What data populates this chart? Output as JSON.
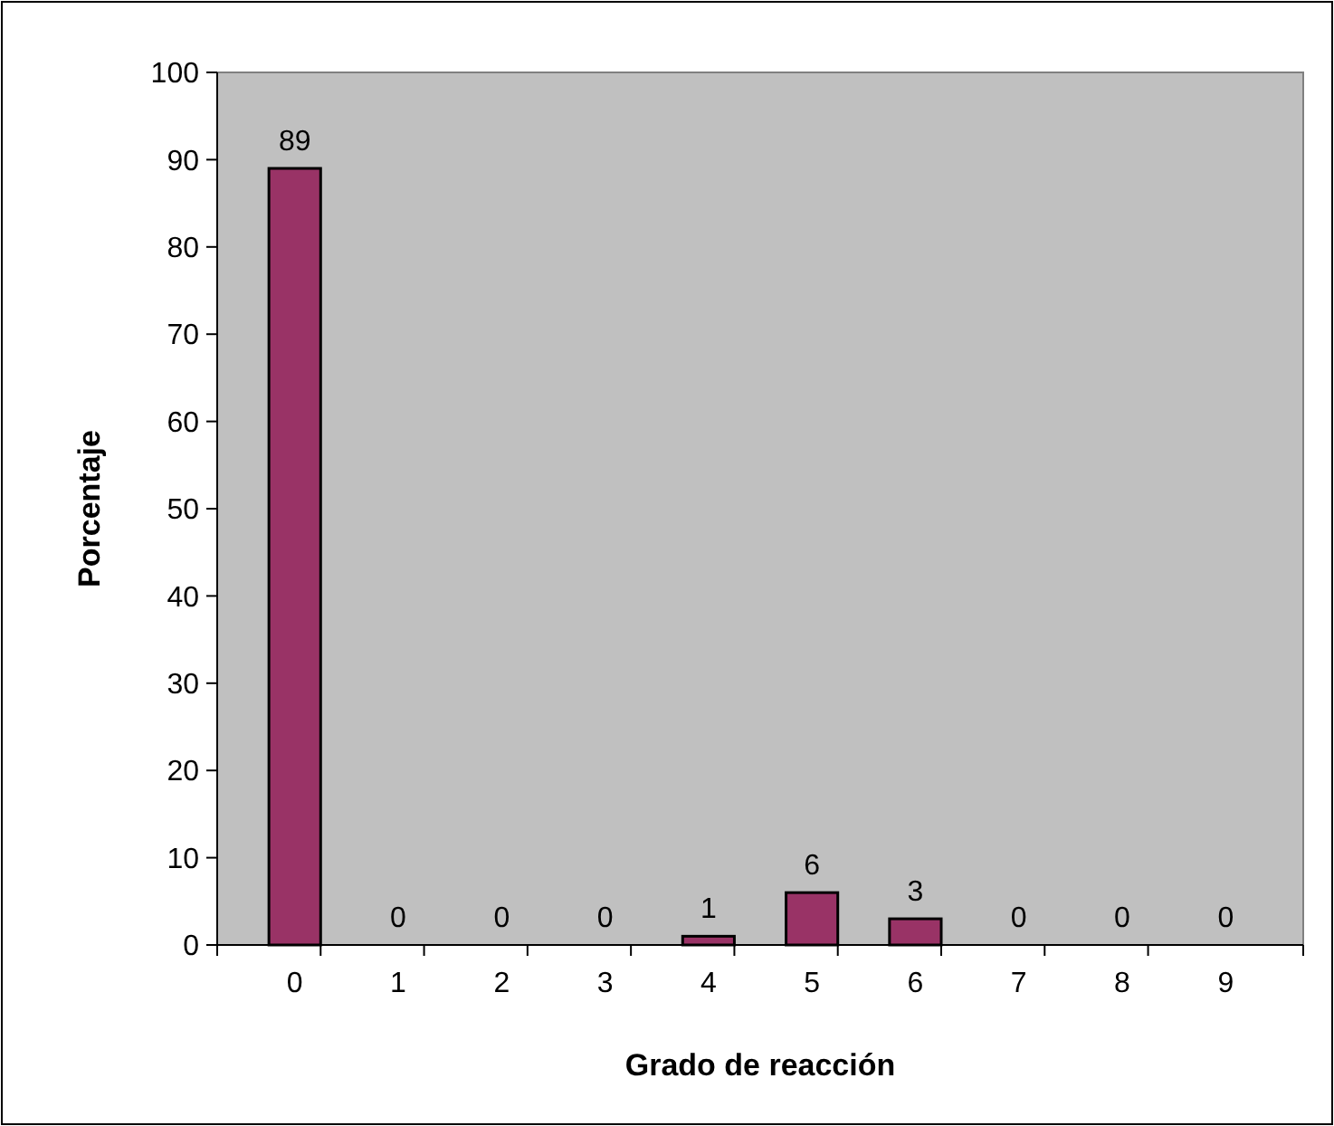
{
  "chart_data": {
    "type": "bar",
    "xlabel": "Grado de reacción",
    "ylabel": "Porcentaje",
    "categories": [
      "0",
      "1",
      "2",
      "3",
      "4",
      "5",
      "6",
      "7",
      "8",
      "9"
    ],
    "values": [
      89,
      0,
      0,
      0,
      1,
      6,
      3,
      0,
      0,
      0
    ],
    "color": "#993366",
    "ylim": [
      0,
      100
    ],
    "yticks": [
      0,
      10,
      20,
      30,
      40,
      50,
      60,
      70,
      80,
      90,
      100
    ],
    "data_labels": true
  }
}
